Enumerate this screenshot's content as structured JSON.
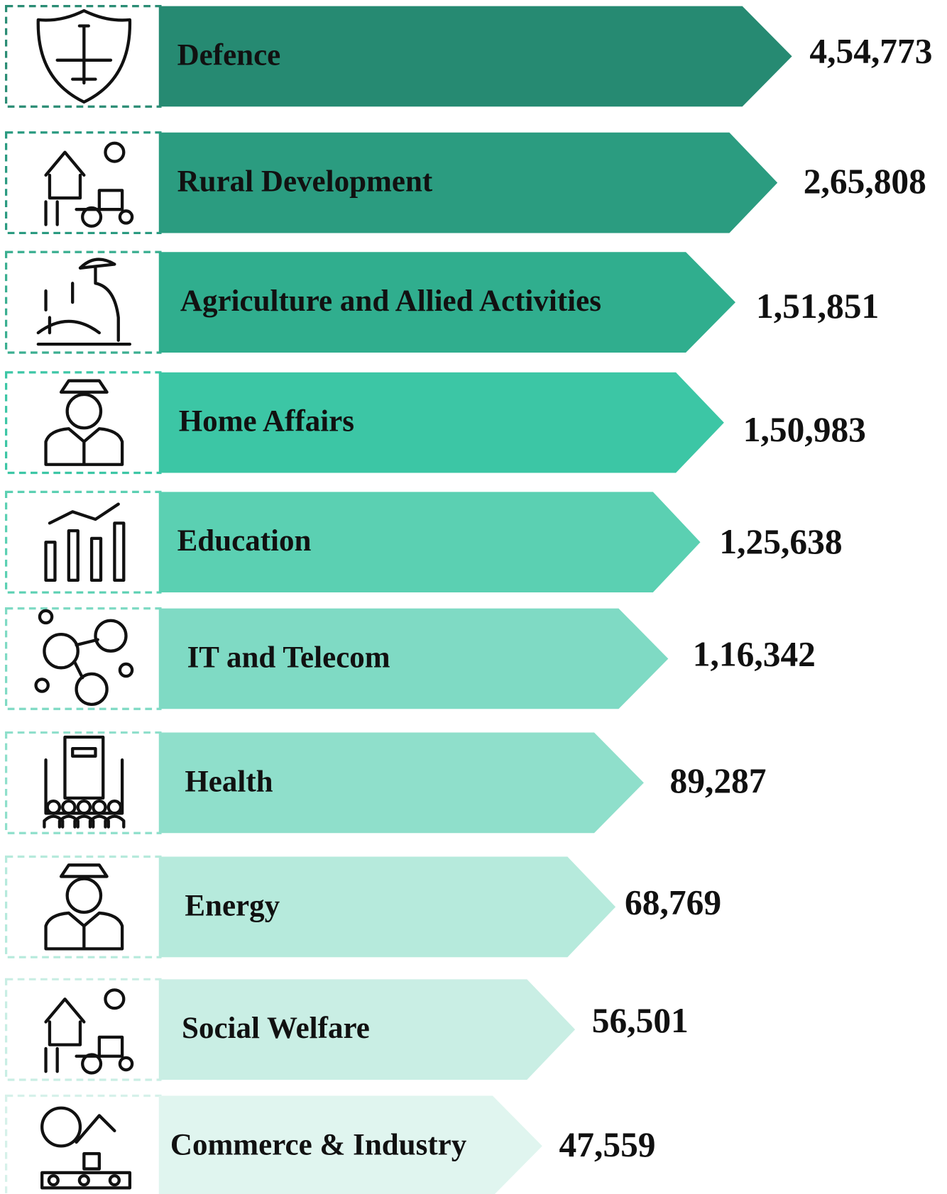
{
  "items": [
    {
      "label": "Defence",
      "value": "4,54,773"
    },
    {
      "label": "Rural Development",
      "value": "2,65,808"
    },
    {
      "label": "Agriculture and Allied Activities",
      "value": "1,51,851"
    },
    {
      "label": "Home Affairs",
      "value": "1,50,983"
    },
    {
      "label": "Education",
      "value": "1,25,638"
    },
    {
      "label": "IT and Telecom",
      "value": "1,16,342"
    },
    {
      "label": "Health",
      "value": "89,287"
    },
    {
      "label": "Energy",
      "value": "68,769"
    },
    {
      "label": "Social Welfare",
      "value": "56,501"
    },
    {
      "label": "Commerce & Industry",
      "value": "47,559"
    }
  ]
}
